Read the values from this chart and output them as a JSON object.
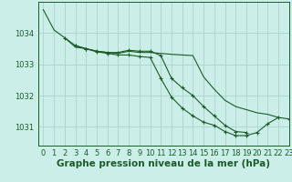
{
  "background_color": "#cceee8",
  "grid_color": "#aad4cc",
  "line_color": "#1a5c28",
  "xlabel": "Graphe pression niveau de la mer (hPa)",
  "xlabel_fontsize": 7.5,
  "tick_fontsize": 6,
  "ylim": [
    1030.4,
    1035.0
  ],
  "xlim": [
    -0.5,
    23
  ],
  "yticks": [
    1031,
    1032,
    1033,
    1034
  ],
  "xticks": [
    0,
    1,
    2,
    3,
    4,
    5,
    6,
    7,
    8,
    9,
    10,
    11,
    12,
    13,
    14,
    15,
    16,
    17,
    18,
    19,
    20,
    21,
    22,
    23
  ],
  "series": [
    {
      "x": [
        0,
        1,
        2,
        3,
        4,
        5,
        6,
        7,
        8,
        9,
        10,
        11,
        12,
        13,
        14,
        15,
        16,
        17,
        18,
        19,
        20,
        21,
        22
      ],
      "y": [
        1034.75,
        1034.1,
        1033.85,
        1033.55,
        1033.5,
        1033.42,
        1033.38,
        1033.35,
        1033.42,
        1033.38,
        1033.38,
        1033.35,
        1033.32,
        1033.3,
        1033.28,
        1032.6,
        1032.2,
        1031.85,
        1031.65,
        1031.55,
        1031.45,
        1031.4,
        1031.3
      ],
      "marker": false
    },
    {
      "x": [
        2,
        3,
        4,
        5,
        6,
        7,
        8,
        9,
        10,
        11,
        12,
        13,
        14,
        15,
        16,
        17,
        18,
        19
      ],
      "y": [
        1033.85,
        1033.6,
        1033.5,
        1033.42,
        1033.38,
        1033.38,
        1033.45,
        1033.42,
        1033.42,
        1033.28,
        1032.55,
        1032.25,
        1032.0,
        1031.65,
        1031.35,
        1031.05,
        1030.85,
        1030.82
      ],
      "marker": true
    },
    {
      "x": [
        3,
        4,
        5,
        6,
        7,
        8,
        9,
        10,
        11,
        12,
        13,
        14,
        15,
        16,
        17,
        18,
        19,
        20,
        21,
        22,
        23
      ],
      "y": [
        1033.6,
        1033.5,
        1033.4,
        1033.35,
        1033.3,
        1033.3,
        1033.25,
        1033.22,
        1032.55,
        1031.95,
        1031.6,
        1031.35,
        1031.15,
        1031.05,
        1030.85,
        1030.72,
        1030.72,
        1030.82,
        1031.1,
        1031.3,
        1031.25
      ],
      "marker": true
    }
  ]
}
